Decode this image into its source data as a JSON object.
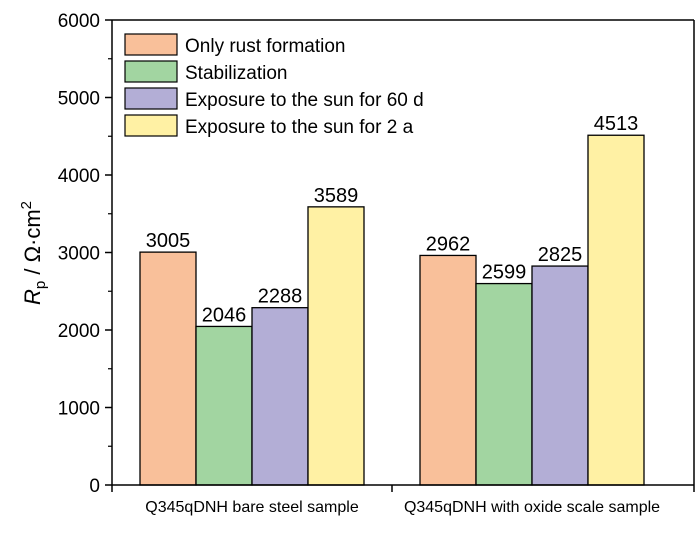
{
  "chart_data": {
    "type": "bar",
    "categories": [
      "Q345qDNH bare steel sample",
      "Q345qDNH with oxide scale sample"
    ],
    "series": [
      {
        "name": "Only rust formation",
        "values": [
          3005,
          2962
        ],
        "color": "#F9C09A"
      },
      {
        "name": "Stabilization",
        "values": [
          2046,
          2599
        ],
        "color": "#A2D5A1"
      },
      {
        "name": "Exposure to the sun for 60 d",
        "values": [
          2288,
          2825
        ],
        "color": "#B3AED6"
      },
      {
        "name": "Exposure to the sun for 2 a",
        "values": [
          3589,
          4513
        ],
        "color": "#FFF1A4"
      }
    ],
    "ylabel": {
      "main": "R",
      "sub": "p",
      "rest": " / Ω·cm",
      "sup": "2"
    },
    "ylim": [
      0,
      6000
    ],
    "yticks": [
      0,
      1000,
      2000,
      3000,
      4000,
      5000,
      6000
    ],
    "legend": "top-left",
    "grid": false
  }
}
